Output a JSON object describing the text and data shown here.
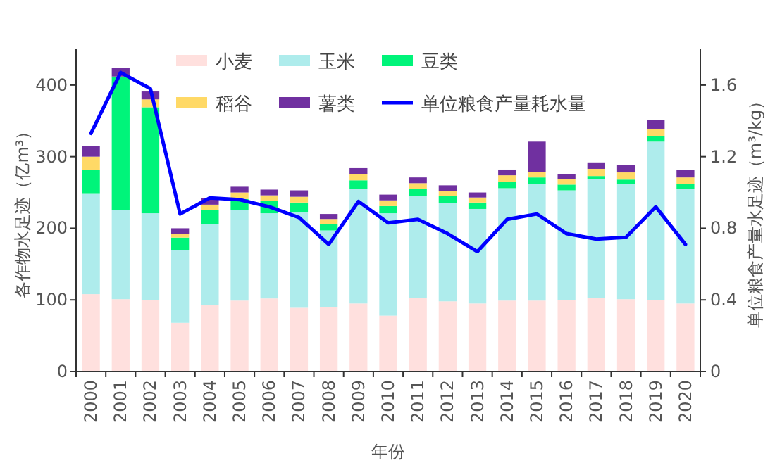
{
  "chart_data": {
    "type": "bar",
    "stacked": true,
    "xlabel": "年份",
    "ylabel": "各作物水足迹（亿m³）",
    "y2label": "单位粮食产量水足迹（m³/kg）",
    "categories": [
      "2000",
      "2001",
      "2002",
      "2003",
      "2004",
      "2005",
      "2006",
      "2007",
      "2008",
      "2009",
      "2010",
      "2011",
      "2012",
      "2013",
      "2014",
      "2015",
      "2016",
      "2017",
      "2018",
      "2019",
      "2020"
    ],
    "series": [
      {
        "name": "小麦",
        "color": "#ffe0de",
        "values": [
          108,
          101,
          100,
          68,
          93,
          99,
          102,
          89,
          90,
          95,
          78,
          103,
          98,
          95,
          99,
          99,
          100,
          103,
          101,
          100,
          95
        ]
      },
      {
        "name": "玉米",
        "color": "#aeecec",
        "values": [
          140,
          124,
          121,
          101,
          113,
          126,
          119,
          134,
          107,
          160,
          143,
          142,
          137,
          132,
          157,
          163,
          153,
          166,
          161,
          221,
          160
        ]
      },
      {
        "name": "豆类",
        "color": "#00f47a",
        "values": [
          34,
          187,
          148,
          18,
          19,
          16,
          17,
          13,
          9,
          12,
          10,
          10,
          10,
          9,
          9,
          9,
          8,
          4,
          6,
          8,
          7
        ]
      },
      {
        "name": "稻谷",
        "color": "#ffd966",
        "values": [
          18,
          null,
          11,
          5,
          8,
          9,
          8,
          8,
          7,
          9,
          8,
          8,
          7,
          7,
          9,
          8,
          8,
          10,
          10,
          10,
          9
        ]
      },
      {
        "name": "薯类",
        "color": "#7030a0",
        "values": [
          15,
          12,
          11,
          8,
          9,
          8,
          8,
          9,
          7,
          8,
          8,
          8,
          8,
          7,
          8,
          42,
          7,
          9,
          10,
          12,
          10
        ]
      },
      {
        "name": "单位粮食产量耗水量",
        "color": "#0000ff",
        "type": "line",
        "axis": "y2",
        "values": [
          1.33,
          1.67,
          1.58,
          0.88,
          0.97,
          0.96,
          0.92,
          0.86,
          0.71,
          0.95,
          0.83,
          0.85,
          0.77,
          0.67,
          0.85,
          0.88,
          0.77,
          0.74,
          0.75,
          0.92,
          0.71
        ]
      }
    ],
    "ylim": [
      0,
      450
    ],
    "yticks": [
      0,
      100,
      200,
      300,
      400
    ],
    "y2lim": [
      0,
      1.8
    ],
    "y2ticks": [
      0,
      0.4,
      0.8,
      1.2,
      1.6
    ],
    "legend": "top"
  }
}
